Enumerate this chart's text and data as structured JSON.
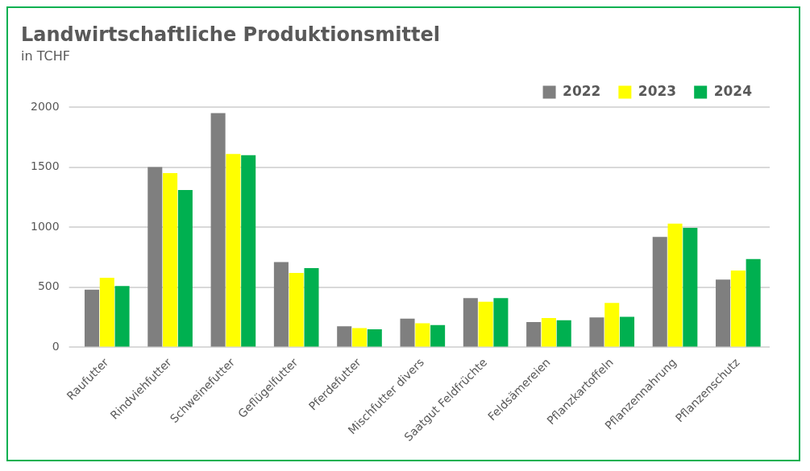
{
  "chart_data": {
    "type": "bar",
    "title": "Landwirtschaftliche Produktionsmittel",
    "subtitle": "in TCHF",
    "categories": [
      "Raufutter",
      "Rindviehfutter",
      "Schweinefutter",
      "Geflügelfutter",
      "Pferdefutter",
      "Mischfutter divers",
      "Saatgut Feldfrüchte",
      "Feldsämereien",
      "Pflanzkartoffeln",
      "Pflanzennahrung",
      "Pflanzenschutz"
    ],
    "series": [
      {
        "name": "2022",
        "color": "#7f7f7f",
        "values": [
          480,
          1500,
          1950,
          710,
          175,
          240,
          410,
          210,
          250,
          920,
          565
        ]
      },
      {
        "name": "2023",
        "color": "#ffff00",
        "values": [
          580,
          1450,
          1610,
          620,
          160,
          200,
          380,
          245,
          370,
          1030,
          640
        ]
      },
      {
        "name": "2024",
        "color": "#00b050",
        "values": [
          510,
          1310,
          1600,
          660,
          150,
          185,
          410,
          225,
          255,
          995,
          735
        ]
      }
    ],
    "ylim": [
      0,
      2000
    ],
    "yticks": [
      0,
      500,
      1000,
      1500,
      2000
    ],
    "grid": "y",
    "legend": "top right"
  }
}
